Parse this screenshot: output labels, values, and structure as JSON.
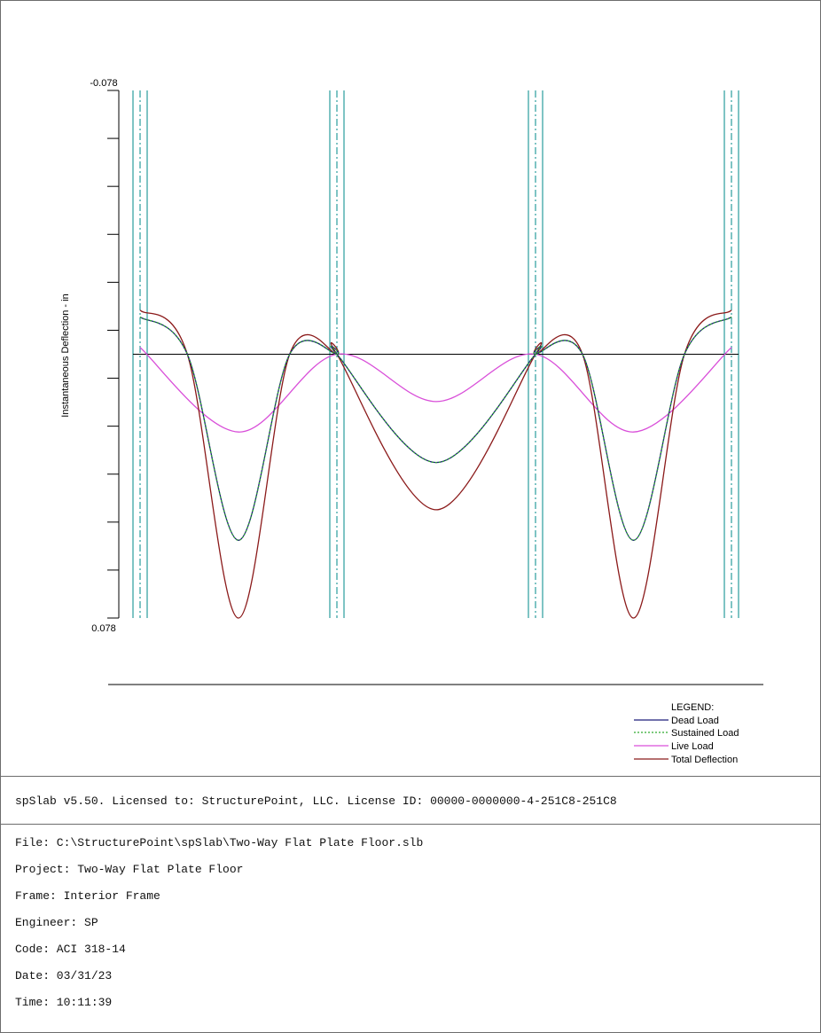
{
  "chart_data": {
    "type": "line",
    "ylabel": "Instantaneous Deflection - in",
    "y_tick_labels": {
      "top": "-0.078",
      "bottom": "0.078"
    },
    "ylim": [
      -0.078,
      0.078
    ],
    "y_axis_inverted": true,
    "y_minor_ticks": 11,
    "support_count": 4,
    "span_count": 3,
    "legend_title": "LEGEND:",
    "legend_position": "bottom-right",
    "series": [
      {
        "name": "Dead Load",
        "color": "#1f1f7a",
        "style": "solid",
        "points": [
          [
            0.0,
            -0.011
          ],
          [
            0.24,
            0.0
          ],
          [
            0.5,
            0.055
          ],
          [
            0.76,
            0.0
          ],
          [
            1.0,
            0.0
          ],
          [
            1.0,
            0.0
          ],
          [
            1.5,
            0.032
          ],
          [
            2.0,
            0.0
          ],
          [
            2.0,
            0.0
          ],
          [
            2.24,
            0.0
          ],
          [
            2.5,
            0.055
          ],
          [
            2.76,
            0.0
          ],
          [
            3.0,
            -0.011
          ]
        ]
      },
      {
        "name": "Sustained Load",
        "color": "#2eaa2e",
        "style": "dotted",
        "points": [
          [
            0.0,
            -0.011
          ],
          [
            0.24,
            0.0
          ],
          [
            0.5,
            0.055
          ],
          [
            0.76,
            0.0
          ],
          [
            1.0,
            0.0
          ],
          [
            1.0,
            0.0
          ],
          [
            1.5,
            0.032
          ],
          [
            2.0,
            0.0
          ],
          [
            2.0,
            0.0
          ],
          [
            2.24,
            0.0
          ],
          [
            2.5,
            0.055
          ],
          [
            2.76,
            0.0
          ],
          [
            3.0,
            -0.011
          ]
        ]
      },
      {
        "name": "Live Load",
        "color": "#d94fd9",
        "style": "solid",
        "points": [
          [
            0.0,
            -0.002
          ],
          [
            0.5,
            0.023
          ],
          [
            1.0,
            0.0
          ],
          [
            1.5,
            0.014
          ],
          [
            2.0,
            0.0
          ],
          [
            2.5,
            0.023
          ],
          [
            3.0,
            -0.002
          ]
        ]
      },
      {
        "name": "Total Deflection",
        "color": "#8b1a1a",
        "style": "solid",
        "points": [
          [
            0.0,
            -0.013
          ],
          [
            0.24,
            0.0
          ],
          [
            0.5,
            0.078
          ],
          [
            0.76,
            0.0
          ],
          [
            1.0,
            0.0
          ],
          [
            1.0,
            0.0
          ],
          [
            1.5,
            0.046
          ],
          [
            2.0,
            0.0
          ],
          [
            2.0,
            0.0
          ],
          [
            2.24,
            0.0
          ],
          [
            2.5,
            0.078
          ],
          [
            2.76,
            0.0
          ],
          [
            3.0,
            -0.013
          ]
        ]
      }
    ]
  },
  "colors": {
    "support_line": "#2a9d9d",
    "axis": "#000000",
    "baseline": "#000000",
    "separator": "#000000"
  },
  "license": "spSlab v5.50. Licensed to: StructurePoint, LLC. License ID: 00000-0000000-4-251C8-251C8",
  "info": {
    "file": "File: C:\\StructurePoint\\spSlab\\Two-Way Flat Plate Floor.slb",
    "project": "Project: Two-Way Flat Plate Floor",
    "frame": "Frame: Interior Frame",
    "engineer": "Engineer: SP",
    "code": "Code: ACI 318-14",
    "date": "Date: 03/31/23",
    "time": "Time: 10:11:39"
  }
}
